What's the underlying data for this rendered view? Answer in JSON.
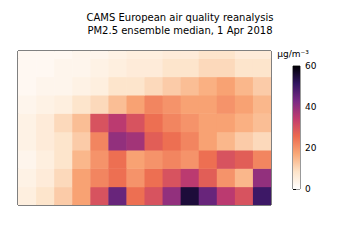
{
  "chart_data": {
    "type": "heatmap",
    "title": "CAMS European air quality reanalysis",
    "subtitle": "PM2.5 ensemble median, 1 Apr 2018",
    "x": [
      -22.5,
      -17.5,
      -12.5,
      -7.5,
      -2.5,
      2.5,
      7.5,
      12.5,
      17.5,
      22.5,
      27.5,
      32.5,
      37.5,
      42.5
    ],
    "y": [
      32.5,
      37.5,
      42.5,
      47.5,
      52.5,
      57.5,
      62.5,
      67.5,
      72.5
    ],
    "cells": [
      [
        5,
        8,
        12,
        18,
        30,
        45,
        25,
        30,
        40,
        55,
        45,
        35,
        30,
        50
      ],
      [
        4,
        6,
        10,
        18,
        22,
        25,
        20,
        25,
        30,
        35,
        28,
        20,
        15,
        40
      ],
      [
        3,
        5,
        8,
        15,
        20,
        25,
        18,
        20,
        22,
        20,
        25,
        30,
        28,
        22
      ],
      [
        4,
        6,
        8,
        12,
        22,
        40,
        38,
        28,
        25,
        22,
        18,
        15,
        12,
        10
      ],
      [
        4,
        6,
        10,
        14,
        30,
        35,
        30,
        25,
        22,
        20,
        18,
        18,
        16,
        14
      ],
      [
        3,
        4,
        5,
        8,
        10,
        14,
        18,
        22,
        20,
        18,
        18,
        20,
        18,
        15
      ],
      [
        2,
        3,
        3,
        4,
        5,
        8,
        8,
        10,
        12,
        14,
        16,
        18,
        15,
        12
      ],
      [
        2,
        2,
        3,
        3,
        4,
        5,
        6,
        6,
        8,
        8,
        10,
        10,
        8,
        8
      ],
      [
        2,
        2,
        2,
        3,
        3,
        4,
        5,
        5,
        6,
        6,
        8,
        8,
        6,
        6
      ]
    ],
    "xlim": [
      -25,
      45
    ],
    "ylim": [
      30,
      72
    ],
    "tick_labels": false,
    "colorbar": {
      "label": "μg/m⁻³",
      "range": [
        0,
        60
      ],
      "ticks": [
        0,
        20,
        40,
        60
      ]
    }
  }
}
